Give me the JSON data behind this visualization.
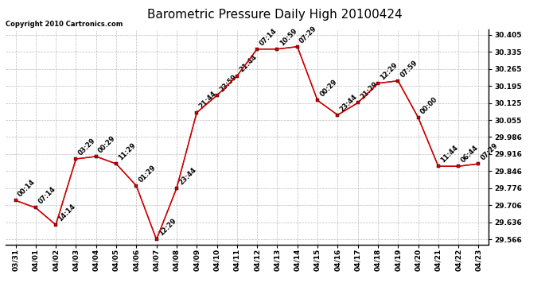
{
  "title": "Barometric Pressure Daily High 20100424",
  "copyright": "Copyright 2010 Cartronics.com",
  "x_labels": [
    "03/31",
    "04/01",
    "04/02",
    "04/03",
    "04/04",
    "04/05",
    "04/06",
    "04/07",
    "04/08",
    "04/09",
    "04/10",
    "04/11",
    "04/12",
    "04/13",
    "04/14",
    "04/15",
    "04/16",
    "04/17",
    "04/18",
    "04/19",
    "04/20",
    "04/21",
    "04/22",
    "04/23"
  ],
  "y_values": [
    29.726,
    29.696,
    29.626,
    29.896,
    29.906,
    29.876,
    29.786,
    29.566,
    29.776,
    30.086,
    30.156,
    30.236,
    30.346,
    30.346,
    30.356,
    30.136,
    30.076,
    30.126,
    30.206,
    30.216,
    30.066,
    29.866,
    29.866,
    29.876
  ],
  "point_labels": [
    "00:14",
    "07:14",
    "14:14",
    "03:29",
    "00:29",
    "11:29",
    "01:29",
    "12:29",
    "23:44",
    "21:44",
    "23:59",
    "21:44",
    "07:14",
    "10:59",
    "07:29",
    "00:29",
    "23:44",
    "21:29",
    "12:29",
    "07:59",
    "00:00",
    "11:44",
    "06:44",
    "07:29"
  ],
  "y_ticks": [
    29.566,
    29.636,
    29.706,
    29.776,
    29.846,
    29.916,
    29.986,
    30.055,
    30.125,
    30.195,
    30.265,
    30.335,
    30.405
  ],
  "y_min": 29.546,
  "y_max": 30.425,
  "line_color": "#cc0000",
  "marker_color": "#cc0000",
  "marker_edge_color": "black",
  "background_color": "white",
  "grid_color": "#bbbbbb",
  "title_fontsize": 11,
  "label_fontsize": 6,
  "tick_fontsize": 6.5,
  "copyright_fontsize": 6
}
